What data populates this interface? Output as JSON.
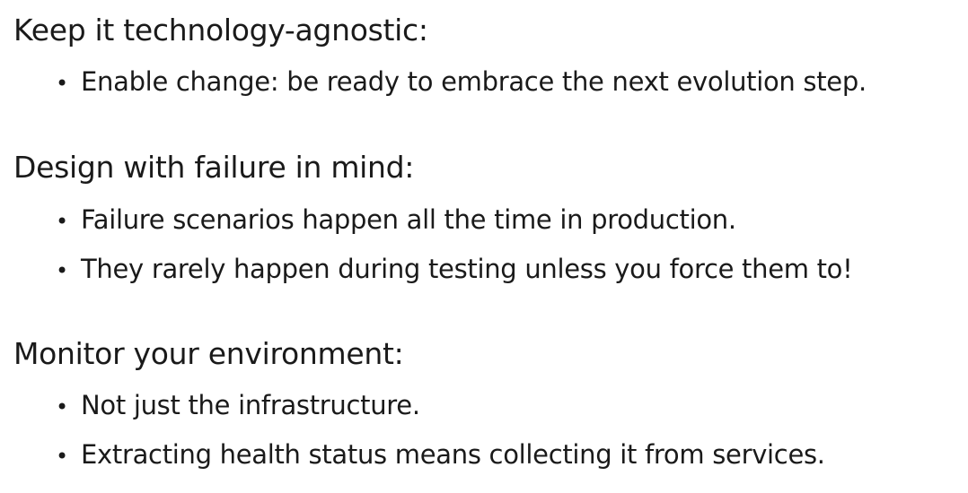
{
  "sections": [
    {
      "heading": "Keep it technology-agnostic:",
      "bullets": [
        "Enable change: be ready to embrace the next evolution step."
      ]
    },
    {
      "heading": "Design with failure in mind:",
      "bullets": [
        "Failure scenarios happen all the time in production.",
        "They rarely happen during testing unless you force them to!"
      ]
    },
    {
      "heading": "Monitor your environment:",
      "bullets": [
        "Not just the infrastructure.",
        "Extracting health status means collecting it from services."
      ]
    }
  ],
  "bullet_glyph": "•"
}
